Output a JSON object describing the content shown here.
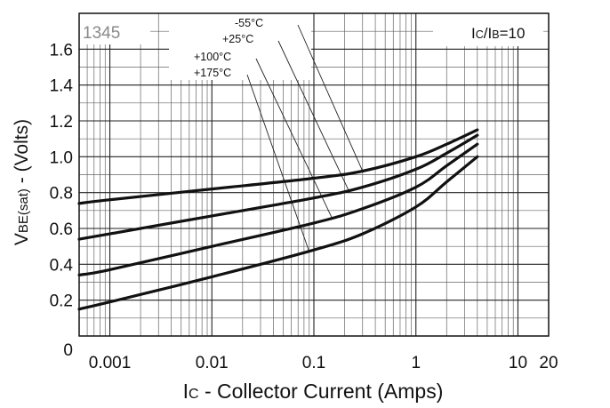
{
  "chart_data": {
    "type": "line",
    "x_scale": "log",
    "xlim": [
      0.0005,
      20
    ],
    "ylim": [
      0,
      1.8
    ],
    "grid": true,
    "plot_number": "1345",
    "condition_label": {
      "pre": "I",
      "sub1": "C",
      "mid": "/I",
      "sub2": "B",
      "post": "=10"
    },
    "ylabel": {
      "pre": "V",
      "sub": "BE(sat)",
      "post": " - (Volts)"
    },
    "xlabel": {
      "pre": "I",
      "sub": "C",
      "post": " - Collector Current (Amps)"
    },
    "x_ticks": [
      {
        "v": 0.001,
        "label": "0.001"
      },
      {
        "v": 0.01,
        "label": "0.01"
      },
      {
        "v": 0.1,
        "label": "0.1"
      },
      {
        "v": 1,
        "label": "1"
      },
      {
        "v": 10,
        "label": "10"
      },
      {
        "v": 20,
        "label": "20"
      }
    ],
    "y_ticks": [
      {
        "v": 0,
        "label": "0"
      },
      {
        "v": 0.2,
        "label": "0.2"
      },
      {
        "v": 0.4,
        "label": "0.4"
      },
      {
        "v": 0.6,
        "label": "0.6"
      },
      {
        "v": 0.8,
        "label": "0.8"
      },
      {
        "v": 1.0,
        "label": "1.0"
      },
      {
        "v": 1.2,
        "label": "1.2"
      },
      {
        "v": 1.4,
        "label": "1.4"
      },
      {
        "v": 1.6,
        "label": "1.6"
      }
    ],
    "series": [
      {
        "name": "-55°C",
        "x": [
          0.0005,
          0.001,
          0.01,
          0.1,
          0.3,
          1,
          2,
          4
        ],
        "y": [
          0.74,
          0.76,
          0.82,
          0.88,
          0.92,
          1.0,
          1.07,
          1.15
        ]
      },
      {
        "name": "+25°C",
        "x": [
          0.0005,
          0.001,
          0.01,
          0.1,
          0.3,
          1,
          2,
          4
        ],
        "y": [
          0.54,
          0.57,
          0.67,
          0.77,
          0.83,
          0.93,
          1.02,
          1.12
        ]
      },
      {
        "name": "+100°C",
        "x": [
          0.0005,
          0.001,
          0.01,
          0.1,
          0.3,
          1,
          2,
          4
        ],
        "y": [
          0.34,
          0.37,
          0.5,
          0.63,
          0.71,
          0.83,
          0.95,
          1.07
        ]
      },
      {
        "name": "+175°C",
        "x": [
          0.0005,
          0.001,
          0.01,
          0.1,
          0.3,
          1,
          2,
          4
        ],
        "y": [
          0.15,
          0.19,
          0.33,
          0.48,
          0.57,
          0.72,
          0.86,
          1.0
        ]
      }
    ],
    "annotations": [
      {
        "text": "-55°C",
        "point_x": 0.3,
        "point_y": 0.92
      },
      {
        "text": "+25°C",
        "point_x": 0.22,
        "point_y": 0.81
      },
      {
        "text": "+100°C",
        "point_x": 0.15,
        "point_y": 0.66
      },
      {
        "text": "+175°C",
        "point_x": 0.09,
        "point_y": 0.47
      }
    ]
  }
}
